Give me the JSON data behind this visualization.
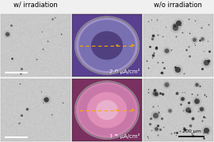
{
  "title_left": "w/ irradiation",
  "title_right": "w/o irradiation",
  "label_top": "2.0 μA/cm²",
  "label_bottom": "1.5 μA/cm²",
  "scale_bar": "200 μm",
  "bg_color": "#f0f0f0",
  "arrow_color": "#ffaa00",
  "title_fontsize": 6.0,
  "label_fontsize": 5.0,
  "scalebar_fontsize": 4.5,
  "sem_bg_left": "#c8c8c4",
  "sem_bg_right_top": "#ccccca",
  "sem_bg_right_bot": "#c8c4c0",
  "optical_top_bg": "#5a4090",
  "optical_top_ring": "#8870b8",
  "optical_top_inner": "#7060a8",
  "optical_top_center": "#403060",
  "optical_bot_bg": "#7a3060",
  "optical_bot_ring": "#c060a0",
  "optical_bot_inner": "#d080b0",
  "optical_bot_pink": "#e0a0c0"
}
